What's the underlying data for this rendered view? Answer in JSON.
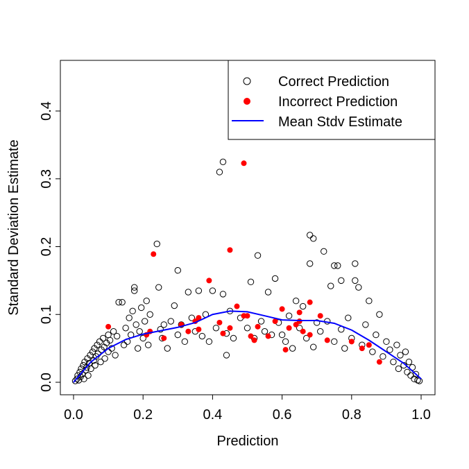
{
  "chart_data": {
    "type": "scatter",
    "title": "",
    "xlabel": "Prediction",
    "ylabel": "Standard Deviation Estimate",
    "xlim": [
      0,
      1
    ],
    "ylim": [
      0,
      0.45
    ],
    "xticks": [
      "0.0",
      "0.2",
      "0.4",
      "0.6",
      "0.8",
      "1.0"
    ],
    "yticks": [
      "0.0",
      "0.1",
      "0.2",
      "0.3",
      "0.4"
    ],
    "grid": false,
    "legend_position": "top-right",
    "colors": {
      "correct": "#000000",
      "incorrect": "#ff0000",
      "mean": "#0000ff"
    },
    "series": [
      {
        "name": "Correct Prediction",
        "marker": "open-circle",
        "points": [
          [
            0.005,
            0.002
          ],
          [
            0.01,
            0.005
          ],
          [
            0.012,
            0.01
          ],
          [
            0.015,
            0.003
          ],
          [
            0.018,
            0.015
          ],
          [
            0.02,
            0.008
          ],
          [
            0.022,
            0.02
          ],
          [
            0.025,
            0.012
          ],
          [
            0.028,
            0.025
          ],
          [
            0.03,
            0.005
          ],
          [
            0.032,
            0.03
          ],
          [
            0.035,
            0.018
          ],
          [
            0.038,
            0.022
          ],
          [
            0.04,
            0.035
          ],
          [
            0.042,
            0.01
          ],
          [
            0.045,
            0.028
          ],
          [
            0.048,
            0.04
          ],
          [
            0.05,
            0.02
          ],
          [
            0.055,
            0.045
          ],
          [
            0.058,
            0.032
          ],
          [
            0.06,
            0.05
          ],
          [
            0.062,
            0.025
          ],
          [
            0.065,
            0.038
          ],
          [
            0.068,
            0.055
          ],
          [
            0.07,
            0.042
          ],
          [
            0.075,
            0.06
          ],
          [
            0.078,
            0.03
          ],
          [
            0.08,
            0.048
          ],
          [
            0.085,
            0.065
          ],
          [
            0.088,
            0.052
          ],
          [
            0.09,
            0.035
          ],
          [
            0.095,
            0.058
          ],
          [
            0.1,
            0.07
          ],
          [
            0.1,
            0.045
          ],
          [
            0.105,
            0.062
          ],
          [
            0.11,
            0.05
          ],
          [
            0.115,
            0.075
          ],
          [
            0.12,
            0.04
          ],
          [
            0.125,
            0.068
          ],
          [
            0.13,
            0.118
          ],
          [
            0.14,
            0.118
          ],
          [
            0.145,
            0.055
          ],
          [
            0.15,
            0.08
          ],
          [
            0.155,
            0.06
          ],
          [
            0.16,
            0.095
          ],
          [
            0.165,
            0.07
          ],
          [
            0.17,
            0.105
          ],
          [
            0.175,
            0.135
          ],
          [
            0.175,
            0.14
          ],
          [
            0.18,
            0.085
          ],
          [
            0.185,
            0.05
          ],
          [
            0.19,
            0.075
          ],
          [
            0.195,
            0.11
          ],
          [
            0.2,
            0.065
          ],
          [
            0.205,
            0.09
          ],
          [
            0.21,
            0.12
          ],
          [
            0.215,
            0.055
          ],
          [
            0.22,
            0.1
          ],
          [
            0.24,
            0.204
          ],
          [
            0.245,
            0.14
          ],
          [
            0.25,
            0.078
          ],
          [
            0.255,
            0.065
          ],
          [
            0.26,
            0.085
          ],
          [
            0.27,
            0.05
          ],
          [
            0.28,
            0.09
          ],
          [
            0.29,
            0.113
          ],
          [
            0.3,
            0.165
          ],
          [
            0.3,
            0.07
          ],
          [
            0.31,
            0.085
          ],
          [
            0.32,
            0.06
          ],
          [
            0.33,
            0.133
          ],
          [
            0.34,
            0.095
          ],
          [
            0.35,
            0.075
          ],
          [
            0.36,
            0.135
          ],
          [
            0.37,
            0.068
          ],
          [
            0.38,
            0.1
          ],
          [
            0.39,
            0.06
          ],
          [
            0.4,
            0.135
          ],
          [
            0.41,
            0.08
          ],
          [
            0.42,
            0.31
          ],
          [
            0.43,
            0.325
          ],
          [
            0.43,
            0.13
          ],
          [
            0.44,
            0.04
          ],
          [
            0.44,
            0.072
          ],
          [
            0.45,
            0.105
          ],
          [
            0.46,
            0.065
          ],
          [
            0.48,
            0.095
          ],
          [
            0.5,
            0.08
          ],
          [
            0.51,
            0.148
          ],
          [
            0.52,
            0.065
          ],
          [
            0.53,
            0.187
          ],
          [
            0.54,
            0.09
          ],
          [
            0.55,
            0.075
          ],
          [
            0.56,
            0.133
          ],
          [
            0.57,
            0.07
          ],
          [
            0.58,
            0.153
          ],
          [
            0.59,
            0.088
          ],
          [
            0.6,
            0.07
          ],
          [
            0.61,
            0.06
          ],
          [
            0.62,
            0.098
          ],
          [
            0.63,
            0.05
          ],
          [
            0.64,
            0.12
          ],
          [
            0.65,
            0.08
          ],
          [
            0.66,
            0.112
          ],
          [
            0.67,
            0.065
          ],
          [
            0.68,
            0.217
          ],
          [
            0.68,
            0.175
          ],
          [
            0.69,
            0.212
          ],
          [
            0.69,
            0.052
          ],
          [
            0.7,
            0.088
          ],
          [
            0.71,
            0.075
          ],
          [
            0.72,
            0.193
          ],
          [
            0.73,
            0.09
          ],
          [
            0.74,
            0.142
          ],
          [
            0.75,
            0.172
          ],
          [
            0.75,
            0.06
          ],
          [
            0.76,
            0.172
          ],
          [
            0.77,
            0.15
          ],
          [
            0.77,
            0.078
          ],
          [
            0.78,
            0.05
          ],
          [
            0.79,
            0.095
          ],
          [
            0.8,
            0.065
          ],
          [
            0.81,
            0.175
          ],
          [
            0.81,
            0.15
          ],
          [
            0.82,
            0.14
          ],
          [
            0.83,
            0.055
          ],
          [
            0.84,
            0.085
          ],
          [
            0.85,
            0.12
          ],
          [
            0.86,
            0.045
          ],
          [
            0.87,
            0.07
          ],
          [
            0.88,
            0.1
          ],
          [
            0.89,
            0.038
          ],
          [
            0.9,
            0.06
          ],
          [
            0.91,
            0.048
          ],
          [
            0.92,
            0.03
          ],
          [
            0.93,
            0.055
          ],
          [
            0.935,
            0.02
          ],
          [
            0.94,
            0.04
          ],
          [
            0.95,
            0.025
          ],
          [
            0.955,
            0.045
          ],
          [
            0.96,
            0.015
          ],
          [
            0.965,
            0.03
          ],
          [
            0.97,
            0.01
          ],
          [
            0.975,
            0.022
          ],
          [
            0.98,
            0.005
          ],
          [
            0.985,
            0.012
          ],
          [
            0.99,
            0.003
          ],
          [
            0.995,
            0.002
          ]
        ]
      },
      {
        "name": "Incorrect Prediction",
        "marker": "filled-circle",
        "points": [
          [
            0.1,
            0.082
          ],
          [
            0.23,
            0.189
          ],
          [
            0.21,
            0.07
          ],
          [
            0.22,
            0.075
          ],
          [
            0.26,
            0.065
          ],
          [
            0.31,
            0.085
          ],
          [
            0.33,
            0.075
          ],
          [
            0.35,
            0.09
          ],
          [
            0.36,
            0.095
          ],
          [
            0.36,
            0.078
          ],
          [
            0.39,
            0.15
          ],
          [
            0.42,
            0.088
          ],
          [
            0.43,
            0.072
          ],
          [
            0.45,
            0.195
          ],
          [
            0.45,
            0.08
          ],
          [
            0.47,
            0.112
          ],
          [
            0.49,
            0.323
          ],
          [
            0.49,
            0.098
          ],
          [
            0.5,
            0.098
          ],
          [
            0.51,
            0.068
          ],
          [
            0.52,
            0.062
          ],
          [
            0.53,
            0.082
          ],
          [
            0.56,
            0.068
          ],
          [
            0.58,
            0.09
          ],
          [
            0.6,
            0.108
          ],
          [
            0.61,
            0.048
          ],
          [
            0.62,
            0.08
          ],
          [
            0.64,
            0.085
          ],
          [
            0.65,
            0.103
          ],
          [
            0.65,
            0.09
          ],
          [
            0.66,
            0.075
          ],
          [
            0.68,
            0.118
          ],
          [
            0.68,
            0.07
          ],
          [
            0.71,
            0.098
          ],
          [
            0.73,
            0.062
          ],
          [
            0.8,
            0.06
          ],
          [
            0.83,
            0.05
          ],
          [
            0.85,
            0.055
          ],
          [
            0.88,
            0.03
          ]
        ]
      },
      {
        "name": "Mean Stdv Estimate",
        "marker": "line",
        "points": [
          [
            0,
            0.0
          ],
          [
            0.05,
            0.03
          ],
          [
            0.1,
            0.05
          ],
          [
            0.15,
            0.063
          ],
          [
            0.2,
            0.071
          ],
          [
            0.25,
            0.076
          ],
          [
            0.3,
            0.081
          ],
          [
            0.35,
            0.088
          ],
          [
            0.4,
            0.1
          ],
          [
            0.45,
            0.105
          ],
          [
            0.5,
            0.104
          ],
          [
            0.55,
            0.098
          ],
          [
            0.6,
            0.092
          ],
          [
            0.65,
            0.091
          ],
          [
            0.7,
            0.091
          ],
          [
            0.75,
            0.087
          ],
          [
            0.8,
            0.077
          ],
          [
            0.85,
            0.062
          ],
          [
            0.9,
            0.045
          ],
          [
            0.95,
            0.028
          ],
          [
            1.0,
            0.005
          ]
        ]
      }
    ]
  }
}
